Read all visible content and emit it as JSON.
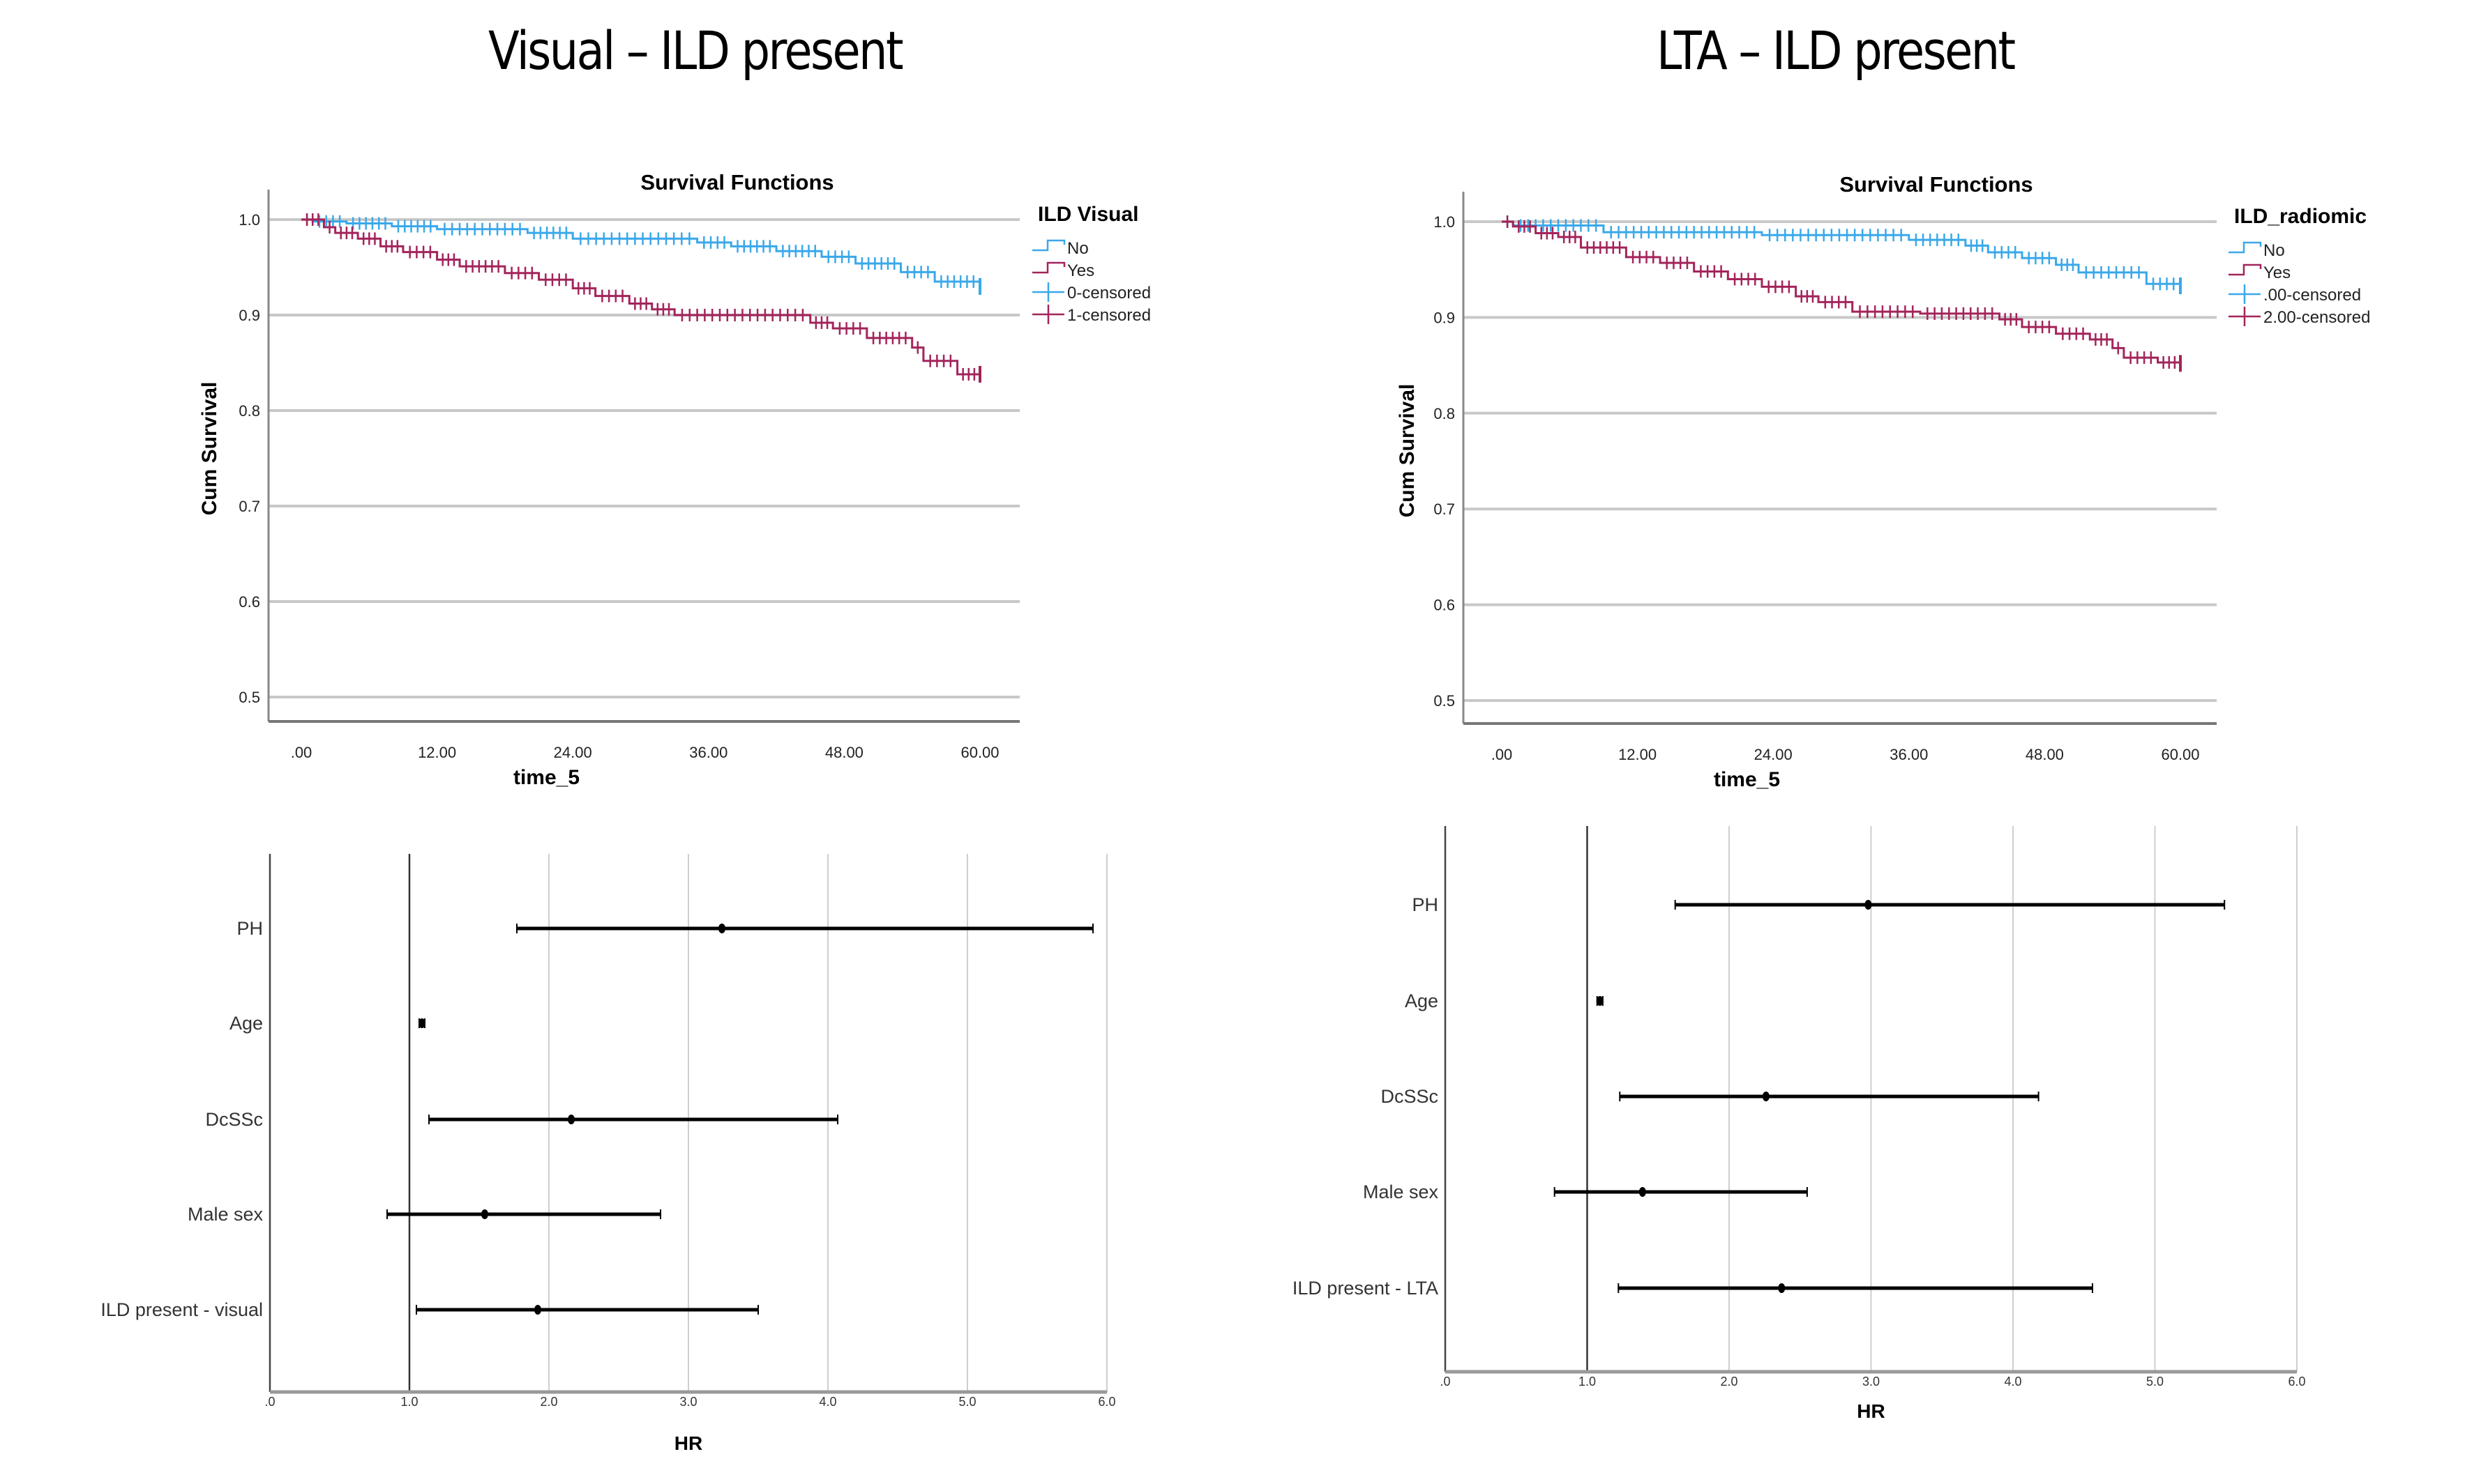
{
  "panels": [
    {
      "title": "Visual – ILD present"
    },
    {
      "title": "LTA – ILD present"
    }
  ],
  "chart_data": [
    {
      "type": "line",
      "subtype": "kaplan-meier step",
      "title": "Survival Functions",
      "xlabel": "time_5",
      "ylabel": "Cum Survival",
      "xlim": [
        0,
        60
      ],
      "ylim": [
        0.5,
        1.0
      ],
      "xticks": [
        0,
        12,
        24,
        36,
        48,
        60
      ],
      "xtick_labels": [
        ".00",
        "12.00",
        "24.00",
        "36.00",
        "48.00",
        "60.00"
      ],
      "yticks": [
        0.5,
        0.6,
        0.7,
        0.8,
        0.9,
        1.0
      ],
      "ytick_labels": [
        "0.5",
        "0.6",
        "0.7",
        "0.8",
        "0.9",
        "1.0"
      ],
      "grid": "horizontal",
      "legend": {
        "title": "ILD Visual",
        "placement": "right",
        "entries": [
          "No",
          "Yes",
          "0-censored",
          "1-censored"
        ]
      },
      "series": [
        {
          "name": "No",
          "color": "#3aa8ea",
          "x": [
            0,
            1,
            4,
            8,
            12,
            20,
            24,
            35,
            38,
            42,
            46,
            49,
            53,
            56,
            60
          ],
          "y": [
            1.0,
            0.998,
            0.996,
            0.993,
            0.99,
            0.986,
            0.98,
            0.976,
            0.972,
            0.967,
            0.961,
            0.954,
            0.945,
            0.935,
            0.93
          ]
        },
        {
          "name": "Yes",
          "color": "#a3245b",
          "x": [
            0,
            2,
            3,
            5,
            7,
            9,
            12,
            14,
            18,
            21,
            24,
            26,
            29,
            31,
            33,
            45,
            47,
            50,
            54,
            55,
            58,
            60
          ],
          "y": [
            1.0,
            0.992,
            0.986,
            0.98,
            0.972,
            0.966,
            0.958,
            0.951,
            0.944,
            0.937,
            0.928,
            0.92,
            0.912,
            0.906,
            0.9,
            0.892,
            0.886,
            0.876,
            0.866,
            0.852,
            0.838,
            0.838
          ]
        }
      ]
    },
    {
      "type": "line",
      "subtype": "kaplan-meier step",
      "title": "Survival Functions",
      "xlabel": "time_5",
      "ylabel": "Cum Survival",
      "xlim": [
        0,
        60
      ],
      "ylim": [
        0.5,
        1.0
      ],
      "xticks": [
        0,
        12,
        24,
        36,
        48,
        60
      ],
      "xtick_labels": [
        ".00",
        "12.00",
        "24.00",
        "36.00",
        "48.00",
        "60.00"
      ],
      "yticks": [
        0.5,
        0.6,
        0.7,
        0.8,
        0.9,
        1.0
      ],
      "ytick_labels": [
        "0.5",
        "0.6",
        "0.7",
        "0.8",
        "0.9",
        "1.0"
      ],
      "grid": "horizontal",
      "legend": {
        "title": "ILD_radiomic",
        "placement": "right",
        "entries": [
          "No",
          "Yes",
          ".00-censored",
          "2.00-censored"
        ]
      },
      "series": [
        {
          "name": "No",
          "color": "#3aa8ea",
          "x": [
            0,
            1,
            9,
            23,
            36,
            41,
            43,
            46,
            49,
            51,
            57,
            60
          ],
          "y": [
            1.0,
            0.996,
            0.989,
            0.986,
            0.981,
            0.975,
            0.968,
            0.962,
            0.955,
            0.947,
            0.935,
            0.933
          ]
        },
        {
          "name": "Yes",
          "color": "#a3245b",
          "x": [
            0,
            1,
            3,
            5,
            7,
            11,
            14,
            17,
            20,
            23,
            26,
            28,
            31,
            37,
            44,
            46,
            49,
            52,
            54,
            55,
            58,
            60
          ],
          "y": [
            1.0,
            0.995,
            0.988,
            0.984,
            0.973,
            0.963,
            0.957,
            0.948,
            0.94,
            0.932,
            0.922,
            0.916,
            0.906,
            0.904,
            0.898,
            0.89,
            0.883,
            0.877,
            0.868,
            0.858,
            0.853,
            0.852
          ]
        }
      ]
    },
    {
      "type": "scatter",
      "subtype": "forest plot",
      "title": "",
      "xlabel": "HR",
      "ylabel": "",
      "xlim": [
        0,
        6
      ],
      "xticks": [
        0,
        1,
        2,
        3,
        4,
        5,
        6
      ],
      "xtick_labels": [
        ".0",
        "1.0",
        "2.0",
        "3.0",
        "4.0",
        "5.0",
        "6.0"
      ],
      "reference_line": 1.0,
      "grid": "vertical",
      "rows": [
        {
          "label": "PH",
          "hr": 3.24,
          "lower": 1.77,
          "upper": 5.9
        },
        {
          "label": "Age",
          "hr": 1.09,
          "lower": 1.07,
          "upper": 1.11
        },
        {
          "label": "DcSSc",
          "hr": 2.16,
          "lower": 1.14,
          "upper": 4.07
        },
        {
          "label": "Male sex",
          "hr": 1.54,
          "lower": 0.84,
          "upper": 2.8
        },
        {
          "label": "ILD present - visual",
          "hr": 1.92,
          "lower": 1.05,
          "upper": 3.5
        }
      ]
    },
    {
      "type": "scatter",
      "subtype": "forest plot",
      "title": "",
      "xlabel": "HR",
      "ylabel": "",
      "xlim": [
        0,
        6
      ],
      "xticks": [
        0,
        1,
        2,
        3,
        4,
        5,
        6
      ],
      "xtick_labels": [
        ".0",
        "1.0",
        "2.0",
        "3.0",
        "4.0",
        "5.0",
        "6.0"
      ],
      "reference_line": 1.0,
      "grid": "vertical",
      "rows": [
        {
          "label": "PH",
          "hr": 2.98,
          "lower": 1.62,
          "upper": 5.49
        },
        {
          "label": "Age",
          "hr": 1.09,
          "lower": 1.07,
          "upper": 1.11
        },
        {
          "label": "DcSSc",
          "hr": 2.26,
          "lower": 1.23,
          "upper": 4.18
        },
        {
          "label": "Male sex",
          "hr": 1.39,
          "lower": 0.77,
          "upper": 2.55
        },
        {
          "label": "ILD present - LTA",
          "hr": 2.37,
          "lower": 1.22,
          "upper": 4.56
        }
      ]
    }
  ]
}
